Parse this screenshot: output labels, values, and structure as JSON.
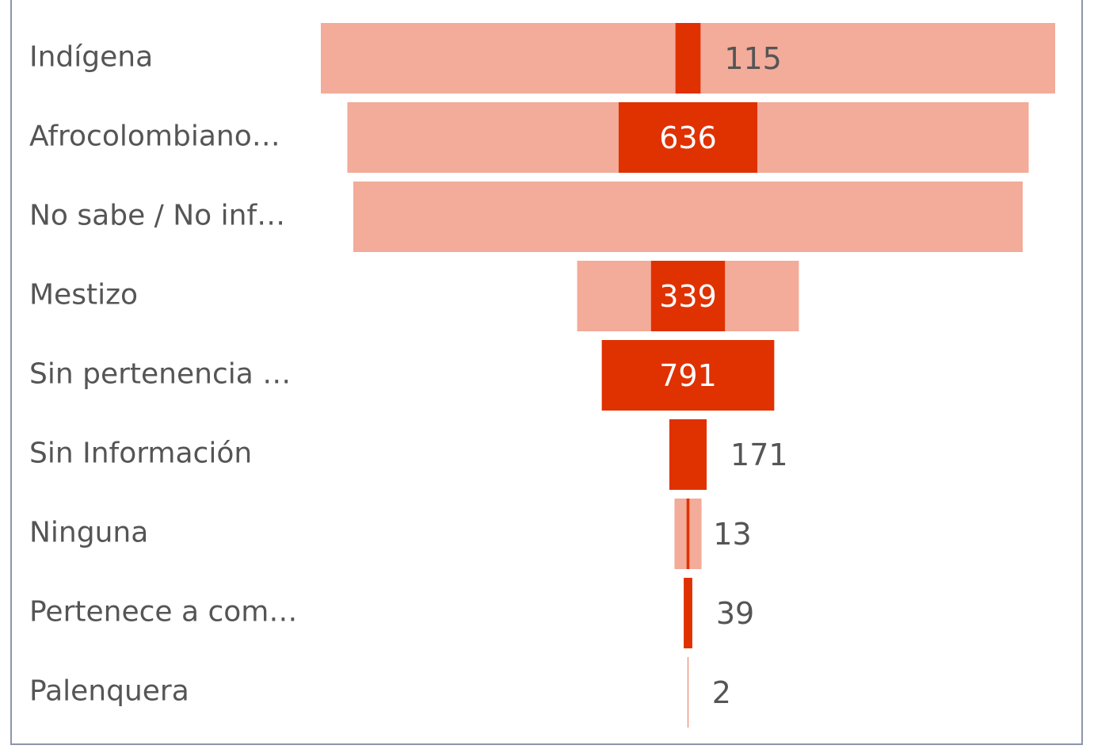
{
  "chart_data": {
    "type": "funnel",
    "categories": [
      "Indígena",
      "Afrocolombiano…",
      "No sabe / No inf…",
      "Mestizo",
      "Sin pertenencia …",
      "Sin Información",
      "Ninguna",
      "Pertenece a com…",
      "Palenquera"
    ],
    "series": [
      {
        "color": "#f3ab9a",
        "values": [
          3368,
          3125,
          3070,
          1017,
          null,
          null,
          124,
          40,
          2
        ]
      },
      {
        "color": "#e03100",
        "values": [
          115,
          636,
          null,
          339,
          791,
          171,
          13,
          39,
          2
        ]
      }
    ]
  }
}
